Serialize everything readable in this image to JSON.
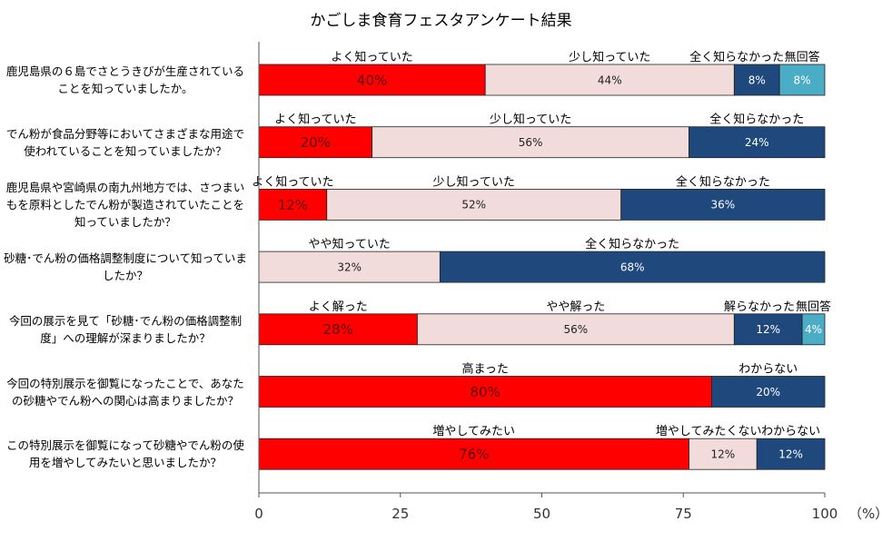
{
  "chart_data": {
    "type": "bar",
    "orientation": "horizontal",
    "stacked": true,
    "title": "かごしま食育フェスタアンケート結果",
    "xlim": [
      0,
      100
    ],
    "x_ticks": [
      "0",
      "25",
      "50",
      "75",
      "100"
    ],
    "x_unit": "（%）",
    "grid": false,
    "colors": {
      "red": "#ff0000",
      "pink": "#f2dcdb",
      "navy": "#1f497d",
      "teal": "#4bacc6"
    },
    "questions": [
      {
        "text": "鹿児島県の６島でさとうきびが生産されていることを知っていましたか。",
        "segments": [
          {
            "label": "よく知っていた",
            "value": 40,
            "value_label": "40%",
            "color": "red"
          },
          {
            "label": "少し知っていた",
            "value": 44,
            "value_label": "44%",
            "color": "pink"
          },
          {
            "label": "全く知らなかった",
            "value": 8,
            "value_label": "8%",
            "color": "navy"
          },
          {
            "label": "無回答",
            "value": 8,
            "value_label": "8%",
            "color": "teal"
          }
        ]
      },
      {
        "text": "でん粉が食品分野等においてさまざまな用途で使われていることを知っていましたか？",
        "segments": [
          {
            "label": "よく知っていた",
            "value": 20,
            "value_label": "20%",
            "color": "red"
          },
          {
            "label": "少し知っていた",
            "value": 56,
            "value_label": "56%",
            "color": "pink"
          },
          {
            "label": "全く知らなかった",
            "value": 24,
            "value_label": "24%",
            "color": "navy"
          }
        ]
      },
      {
        "text": "鹿児島県や宮崎県の南九州地方では、さつまいもを原料としたでん粉が製造されていたことを知っていましたか？",
        "segments": [
          {
            "label": "よく知っていた",
            "value": 12,
            "value_label": "12%",
            "color": "red"
          },
          {
            "label": "少し知っていた",
            "value": 52,
            "value_label": "52%",
            "color": "pink"
          },
          {
            "label": "全く知らなかった",
            "value": 36,
            "value_label": "36%",
            "color": "navy"
          }
        ]
      },
      {
        "text": "砂糖･でん粉の価格調整制度について知っていましたか？",
        "segments": [
          {
            "label": "やや知っていた",
            "value": 32,
            "value_label": "32%",
            "color": "pink"
          },
          {
            "label": "全く知らなかった",
            "value": 68,
            "value_label": "68%",
            "color": "navy"
          }
        ]
      },
      {
        "text": "今回の展示を見て「砂糖･でん粉の価格調整制度」への理解が深まりましたか？",
        "segments": [
          {
            "label": "よく解った",
            "value": 28,
            "value_label": "28%",
            "color": "red"
          },
          {
            "label": "やや解った",
            "value": 56,
            "value_label": "56%",
            "color": "pink"
          },
          {
            "label": "解らなかった",
            "value": 12,
            "value_label": "12%",
            "color": "navy"
          },
          {
            "label": "無回答",
            "value": 4,
            "value_label": "4%",
            "color": "teal"
          }
        ]
      },
      {
        "text": "今回の特別展示を御覧になったことで、あなたの砂糖やでん粉への関心は高まりましたか？",
        "segments": [
          {
            "label": "高まった",
            "value": 80,
            "value_label": "80%",
            "color": "red"
          },
          {
            "label": "わからない",
            "value": 20,
            "value_label": "20%",
            "color": "navy"
          }
        ]
      },
      {
        "text": "この特別展示を御覧になって砂糖やでん粉の使用を増やしてみたいと思いましたか？",
        "segments": [
          {
            "label": "増やしてみたい",
            "value": 76,
            "value_label": "76%",
            "color": "red"
          },
          {
            "label": "増やしてみたくない",
            "value": 12,
            "value_label": "12%",
            "color": "pink"
          },
          {
            "label": "わからない",
            "value": 12,
            "value_label": "12%",
            "color": "navy"
          }
        ]
      }
    ]
  }
}
